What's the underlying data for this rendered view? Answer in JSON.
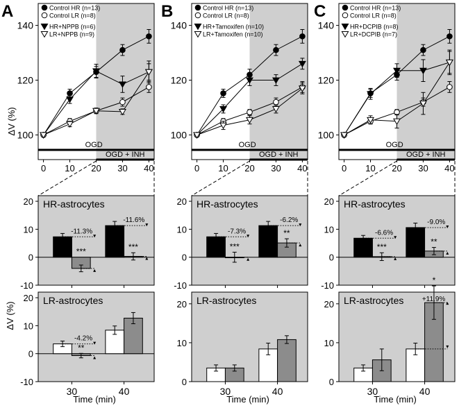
{
  "figure": {
    "panel_letters": [
      "A",
      "B",
      "C"
    ],
    "y_label_top": "ΔV (%)",
    "y_label_bottom": "ΔV (%)",
    "x_label": "Time (min)",
    "ogd_label": "OGD",
    "ogd_inh_label": "OGD + INH"
  },
  "chart_data": [
    {
      "id": "A-top",
      "type": "line",
      "panel": "A",
      "x": [
        0,
        10,
        20,
        30,
        40
      ],
      "xlim": [
        -2,
        42
      ],
      "ylim": [
        91,
        148
      ],
      "xticks": [
        0,
        10,
        20,
        30,
        40
      ],
      "yticks": [
        100,
        120,
        140
      ],
      "shaded_from": 20,
      "series": [
        {
          "name": "Control HR (n=13)",
          "marker": "filled-circle",
          "values": [
            100,
            115.2,
            123,
            131,
            136
          ],
          "err": [
            0,
            1.5,
            2,
            2,
            2.5
          ]
        },
        {
          "name": "Control LR (n=8)",
          "marker": "open-circle",
          "values": [
            100,
            105,
            108.8,
            112,
            117.5
          ],
          "err": [
            0,
            1,
            1,
            1.5,
            2
          ]
        },
        {
          "name": "HR+NPPB (n=6)",
          "marker": "filled-triangle-down",
          "values": [
            100,
            113,
            123.3,
            118.5,
            123
          ],
          "err": [
            0,
            1.5,
            2.5,
            3,
            3
          ]
        },
        {
          "name": "LR+NPPB (n=9)",
          "marker": "open-triangle-down",
          "values": [
            100,
            104,
            108.8,
            108.5,
            123
          ],
          "err": [
            0,
            1,
            1,
            1,
            4
          ]
        }
      ]
    },
    {
      "id": "B-top",
      "type": "line",
      "panel": "B",
      "x": [
        0,
        10,
        20,
        30,
        40
      ],
      "xlim": [
        -2,
        42
      ],
      "ylim": [
        91,
        148
      ],
      "xticks": [
        0,
        10,
        20,
        30,
        40
      ],
      "yticks": [
        100,
        120,
        140
      ],
      "shaded_from": 20,
      "series": [
        {
          "name": "Control HR (n=13)",
          "marker": "filled-circle",
          "values": [
            100,
            115.2,
            122,
            131,
            136
          ],
          "err": [
            0,
            1.5,
            2,
            2,
            2.5
          ]
        },
        {
          "name": "Control LR (n=8)",
          "marker": "open-circle",
          "values": [
            100,
            105,
            108.3,
            112,
            117.5
          ],
          "err": [
            0,
            1,
            1,
            1.5,
            2
          ]
        },
        {
          "name": "HR+Tamoxifen (n=10)",
          "marker": "filled-triangle-down",
          "values": [
            100,
            109.5,
            120,
            120,
            126
          ],
          "err": [
            0,
            1.5,
            2,
            2,
            2
          ]
        },
        {
          "name": "LR+Tamoxifen (n=10)",
          "marker": "open-triangle-down",
          "values": [
            100,
            103.5,
            105.5,
            109.5,
            117
          ],
          "err": [
            0,
            1.5,
            1.5,
            1.5,
            2
          ]
        }
      ]
    },
    {
      "id": "C-top",
      "type": "line",
      "panel": "C",
      "x": [
        0,
        10,
        20,
        30,
        40
      ],
      "xlim": [
        -2,
        42
      ],
      "ylim": [
        91,
        148
      ],
      "xticks": [
        0,
        10,
        20,
        30,
        40
      ],
      "yticks": [
        100,
        120,
        140
      ],
      "shaded_from": 20,
      "series": [
        {
          "name": "Control HR (n=13)",
          "marker": "filled-circle",
          "values": [
            100,
            115.2,
            122,
            131,
            136
          ],
          "err": [
            0,
            1.5,
            2,
            2,
            2.5
          ]
        },
        {
          "name": "Control LR (n=8)",
          "marker": "open-circle",
          "values": [
            100,
            105,
            108.3,
            112,
            117.5
          ],
          "err": [
            0,
            1,
            1,
            1.5,
            2
          ]
        },
        {
          "name": "HR+DCPIB (n=8)",
          "marker": "filled-triangle-down",
          "values": [
            100,
            115,
            123.5,
            123.5,
            126.5
          ],
          "err": [
            0,
            2,
            2.5,
            4,
            4
          ]
        },
        {
          "name": "LR+DCPIB (n=7)",
          "marker": "open-triangle-down",
          "values": [
            100,
            105.5,
            105,
            111.5,
            126.5
          ],
          "err": [
            0,
            1.5,
            2.5,
            4,
            4.5
          ]
        }
      ]
    },
    {
      "id": "A-hr",
      "type": "bar",
      "panel": "A",
      "title": "HR-astrocytes",
      "categories": [
        "30",
        "40"
      ],
      "ylim": [
        -10,
        22
      ],
      "yticks": [
        -10,
        0,
        10,
        20
      ],
      "series": [
        {
          "name": "Control",
          "values": [
            7.3,
            11.3
          ],
          "err": [
            1.2,
            1.5
          ],
          "color": "#000000"
        },
        {
          "name": "Inhibitor",
          "values": [
            -4,
            0.3
          ],
          "err": [
            1.2,
            1.3
          ],
          "color": "#8c8c8c"
        }
      ],
      "annotations": [
        {
          "category": 0,
          "text": "-11.3%",
          "from": 7.3,
          "to": -4
        },
        {
          "category": 1,
          "text": "-11.6%",
          "from": 11.3,
          "to": 0.3
        }
      ],
      "stars": [
        "***",
        "***"
      ]
    },
    {
      "id": "B-hr",
      "type": "bar",
      "panel": "B",
      "title": "HR-astrocytes",
      "categories": [
        "30",
        "40"
      ],
      "ylim": [
        -10,
        22
      ],
      "yticks": [
        -10,
        0,
        10,
        20
      ],
      "series": [
        {
          "name": "Control",
          "values": [
            7.3,
            11.3
          ],
          "err": [
            1.2,
            1.5
          ],
          "color": "#000000"
        },
        {
          "name": "Tamoxifen",
          "values": [
            0,
            5.1
          ],
          "err": [
            1.8,
            1.5
          ],
          "color": "#8c8c8c"
        }
      ],
      "annotations": [
        {
          "category": 0,
          "text": "-7.3%",
          "from": 7.3,
          "to": 0
        },
        {
          "category": 1,
          "text": "-6.2%",
          "from": 11.3,
          "to": 5.1
        }
      ],
      "stars": [
        "***",
        "**"
      ]
    },
    {
      "id": "C-hr",
      "type": "bar",
      "panel": "C",
      "title": "HR-astrocytes",
      "categories": [
        "30",
        "40"
      ],
      "ylim": [
        -10,
        22
      ],
      "yticks": [
        -10,
        0,
        10,
        20
      ],
      "series": [
        {
          "name": "Control",
          "values": [
            6.8,
            10.6
          ],
          "err": [
            1,
            1.6
          ],
          "color": "#000000"
        },
        {
          "name": "DCPIB",
          "values": [
            0.2,
            2.2
          ],
          "err": [
            1.4,
            1.3
          ],
          "color": "#8c8c8c"
        }
      ],
      "annotations": [
        {
          "category": 0,
          "text": "-6.6%",
          "from": 6.8,
          "to": 0.2
        },
        {
          "category": 1,
          "text": "-9.0%",
          "from": 10.6,
          "to": 2.2
        }
      ],
      "stars": [
        "***",
        "**"
      ]
    },
    {
      "id": "A-lr",
      "type": "bar",
      "panel": "A",
      "title": "LR-astrocytes",
      "categories": [
        "30",
        "40"
      ],
      "ylim": [
        -10,
        22
      ],
      "yticks": [
        -10,
        0,
        10,
        20
      ],
      "series": [
        {
          "name": "Control",
          "values": [
            3.5,
            8.4
          ],
          "err": [
            1,
            1.5
          ],
          "color": "#ffffff"
        },
        {
          "name": "Inhibitor",
          "values": [
            -0.7,
            12.7
          ],
          "err": [
            0.8,
            2
          ],
          "color": "#8c8c8c"
        }
      ],
      "annotations": [
        {
          "category": 0,
          "text": "-4.2%",
          "from": 3.5,
          "to": -0.7
        }
      ],
      "stars": [
        "**",
        ""
      ]
    },
    {
      "id": "B-lr",
      "type": "bar",
      "panel": "B",
      "title": "LR-astrocytes",
      "categories": [
        "30",
        "40"
      ],
      "ylim": [
        0,
        23
      ],
      "yticks": [
        0,
        10,
        20
      ],
      "series": [
        {
          "name": "Control",
          "values": [
            3.5,
            8.4
          ],
          "err": [
            0.8,
            1.5
          ],
          "color": "#ffffff"
        },
        {
          "name": "Tamoxifen",
          "values": [
            3.5,
            10.8
          ],
          "err": [
            0.8,
            1
          ],
          "color": "#8c8c8c"
        }
      ],
      "annotations": [],
      "stars": [
        "",
        ""
      ]
    },
    {
      "id": "C-lr",
      "type": "bar",
      "panel": "C",
      "title": "LR-astrocytes",
      "categories": [
        "30",
        "40"
      ],
      "ylim": [
        0,
        23
      ],
      "yticks": [
        0,
        10,
        20
      ],
      "series": [
        {
          "name": "Control",
          "values": [
            3.5,
            8.4
          ],
          "err": [
            0.8,
            1.5
          ],
          "color": "#ffffff"
        },
        {
          "name": "DCPIB",
          "values": [
            5.6,
            20.3
          ],
          "err": [
            2.8,
            4.3
          ],
          "color": "#8c8c8c"
        }
      ],
      "annotations": [
        {
          "category": 1,
          "text": "+11.9%",
          "from": 8.4,
          "to": 20.3
        }
      ],
      "stars": [
        "",
        "*"
      ]
    }
  ]
}
